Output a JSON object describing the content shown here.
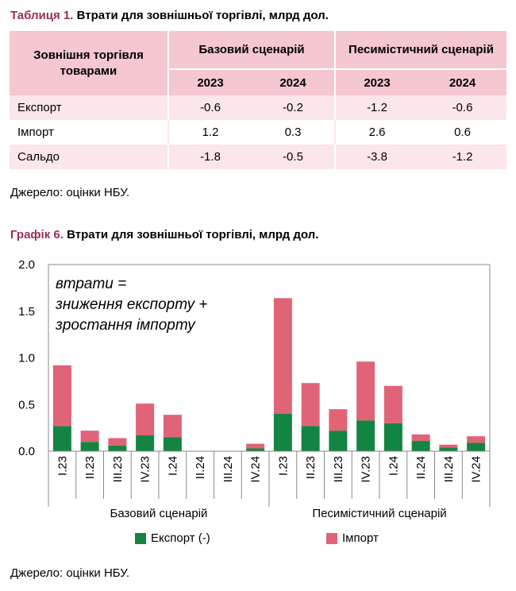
{
  "table": {
    "title_label": "Таблиця 1.",
    "title_text": "Втрати для зовнішньої торгівлі, млрд дол.",
    "corner_header": "Зовнішня торгівля товарами",
    "scenarios": [
      "Базовий сценарій",
      "Песимістичний сценарій"
    ],
    "years": [
      "2023",
      "2024",
      "2023",
      "2024"
    ],
    "rows": [
      {
        "label": "Експорт",
        "values": [
          "-0.6",
          "-0.2",
          "-1.2",
          "-0.6"
        ]
      },
      {
        "label": "Імпорт",
        "values": [
          "1.2",
          "0.3",
          "2.6",
          "0.6"
        ]
      },
      {
        "label": "Сальдо",
        "values": [
          "-1.8",
          "-0.5",
          "-3.8",
          "-1.2"
        ]
      }
    ],
    "source": "Джерело: оцінки НБУ."
  },
  "graph": {
    "title_label": "Графік 6.",
    "title_text": "Втрати для зовнішньої торгівлі, млрд дол.",
    "annotation": [
      "втрати =",
      "зниження експорту +",
      "зростання імпорту"
    ],
    "source": "Джерело: оцінки НБУ.",
    "colors": {
      "export": "#148442",
      "import": "#e06478",
      "axis": "#888888"
    }
  },
  "chart_data": {
    "type": "bar",
    "stacked": true,
    "categories": [
      "I.23",
      "II.23",
      "III.23",
      "IV.23",
      "I.24",
      "II.24",
      "III.24",
      "IV.24",
      "I.23",
      "II.23",
      "III.23",
      "IV.23",
      "I.24",
      "II.24",
      "III.24",
      "IV.24"
    ],
    "groups": [
      {
        "label": "Базовий сценарій",
        "count": 8
      },
      {
        "label": "Песимістичний сценарій",
        "count": 8
      }
    ],
    "series": [
      {
        "name": "Експорт (-)",
        "color": "#148442",
        "values": [
          0.27,
          0.1,
          0.06,
          0.17,
          0.15,
          0.0,
          0.0,
          0.03,
          0.4,
          0.27,
          0.22,
          0.33,
          0.3,
          0.11,
          0.04,
          0.09
        ]
      },
      {
        "name": "Імпорт",
        "color": "#e06478",
        "values": [
          0.65,
          0.12,
          0.08,
          0.34,
          0.24,
          0.0,
          0.0,
          0.05,
          1.24,
          0.46,
          0.23,
          0.63,
          0.4,
          0.07,
          0.03,
          0.07
        ]
      }
    ],
    "ylim": [
      0,
      2.0
    ],
    "yticks": [
      "2.0",
      "1.5",
      "1.0",
      "0.5",
      "0.0"
    ],
    "xlabel": "",
    "ylabel": "",
    "legend": "bottom-center",
    "grid": false
  }
}
